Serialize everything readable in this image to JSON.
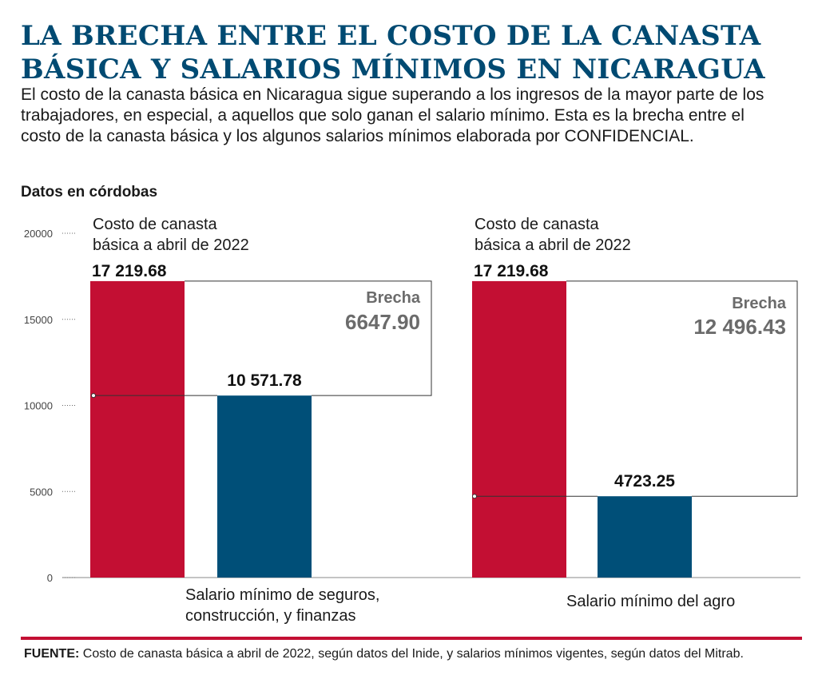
{
  "title_lines": [
    "LA BRECHA ENTRE EL COSTO DE LA CANASTA",
    "BÁSICA Y SALARIOS MÍNIMOS EN NICARAGUA"
  ],
  "subtitle": "El costo de la canasta básica en Nicaragua sigue superando a los ingresos de la mayor parte de los trabajadores, en especial, a aquellos que solo ganan el salario mínimo. Esta es la brecha entre el costo de la canasta básica y los algunos salarios mínimos elaborada por CONFIDENCIAL.",
  "unit_label": "Datos en córdobas",
  "source": {
    "label": "FUENTE:",
    "text": " Costo de canasta básica a abril de 2022, según datos del Inide, y salarios mínimos vigentes, según datos del Mitrab."
  },
  "colors": {
    "title": "#004a72",
    "canasta": "#c30f33",
    "salario": "#004f78",
    "gap_text": "#6b6b6b",
    "rule": "#c30f33"
  },
  "chart_data": {
    "type": "bar",
    "ylim": [
      0,
      20000
    ],
    "yticks": [
      "0",
      "5000",
      "10000",
      "15000",
      "20000"
    ],
    "grid": false,
    "groups": [
      {
        "canasta_label_lines": [
          "Costo de canasta",
          "básica a abril de 2022"
        ],
        "canasta_value": 17219.68,
        "canasta_value_label": "17 219.68",
        "salario_label_lines": [
          "Salario mínimo de seguros,",
          "construcción, y finanzas"
        ],
        "salario_value": 10571.78,
        "salario_value_label": "10 571.78",
        "gap_title": "Brecha",
        "gap_value_label": "6647.90"
      },
      {
        "canasta_label_lines": [
          "Costo de canasta",
          "básica a abril de 2022"
        ],
        "canasta_value": 17219.68,
        "canasta_value_label": "17 219.68",
        "salario_label_lines": [
          "Salario mínimo del agro"
        ],
        "salario_value": 4723.25,
        "salario_value_label": "4723.25",
        "gap_title": "Brecha",
        "gap_value_label": "12 496.43"
      }
    ]
  }
}
